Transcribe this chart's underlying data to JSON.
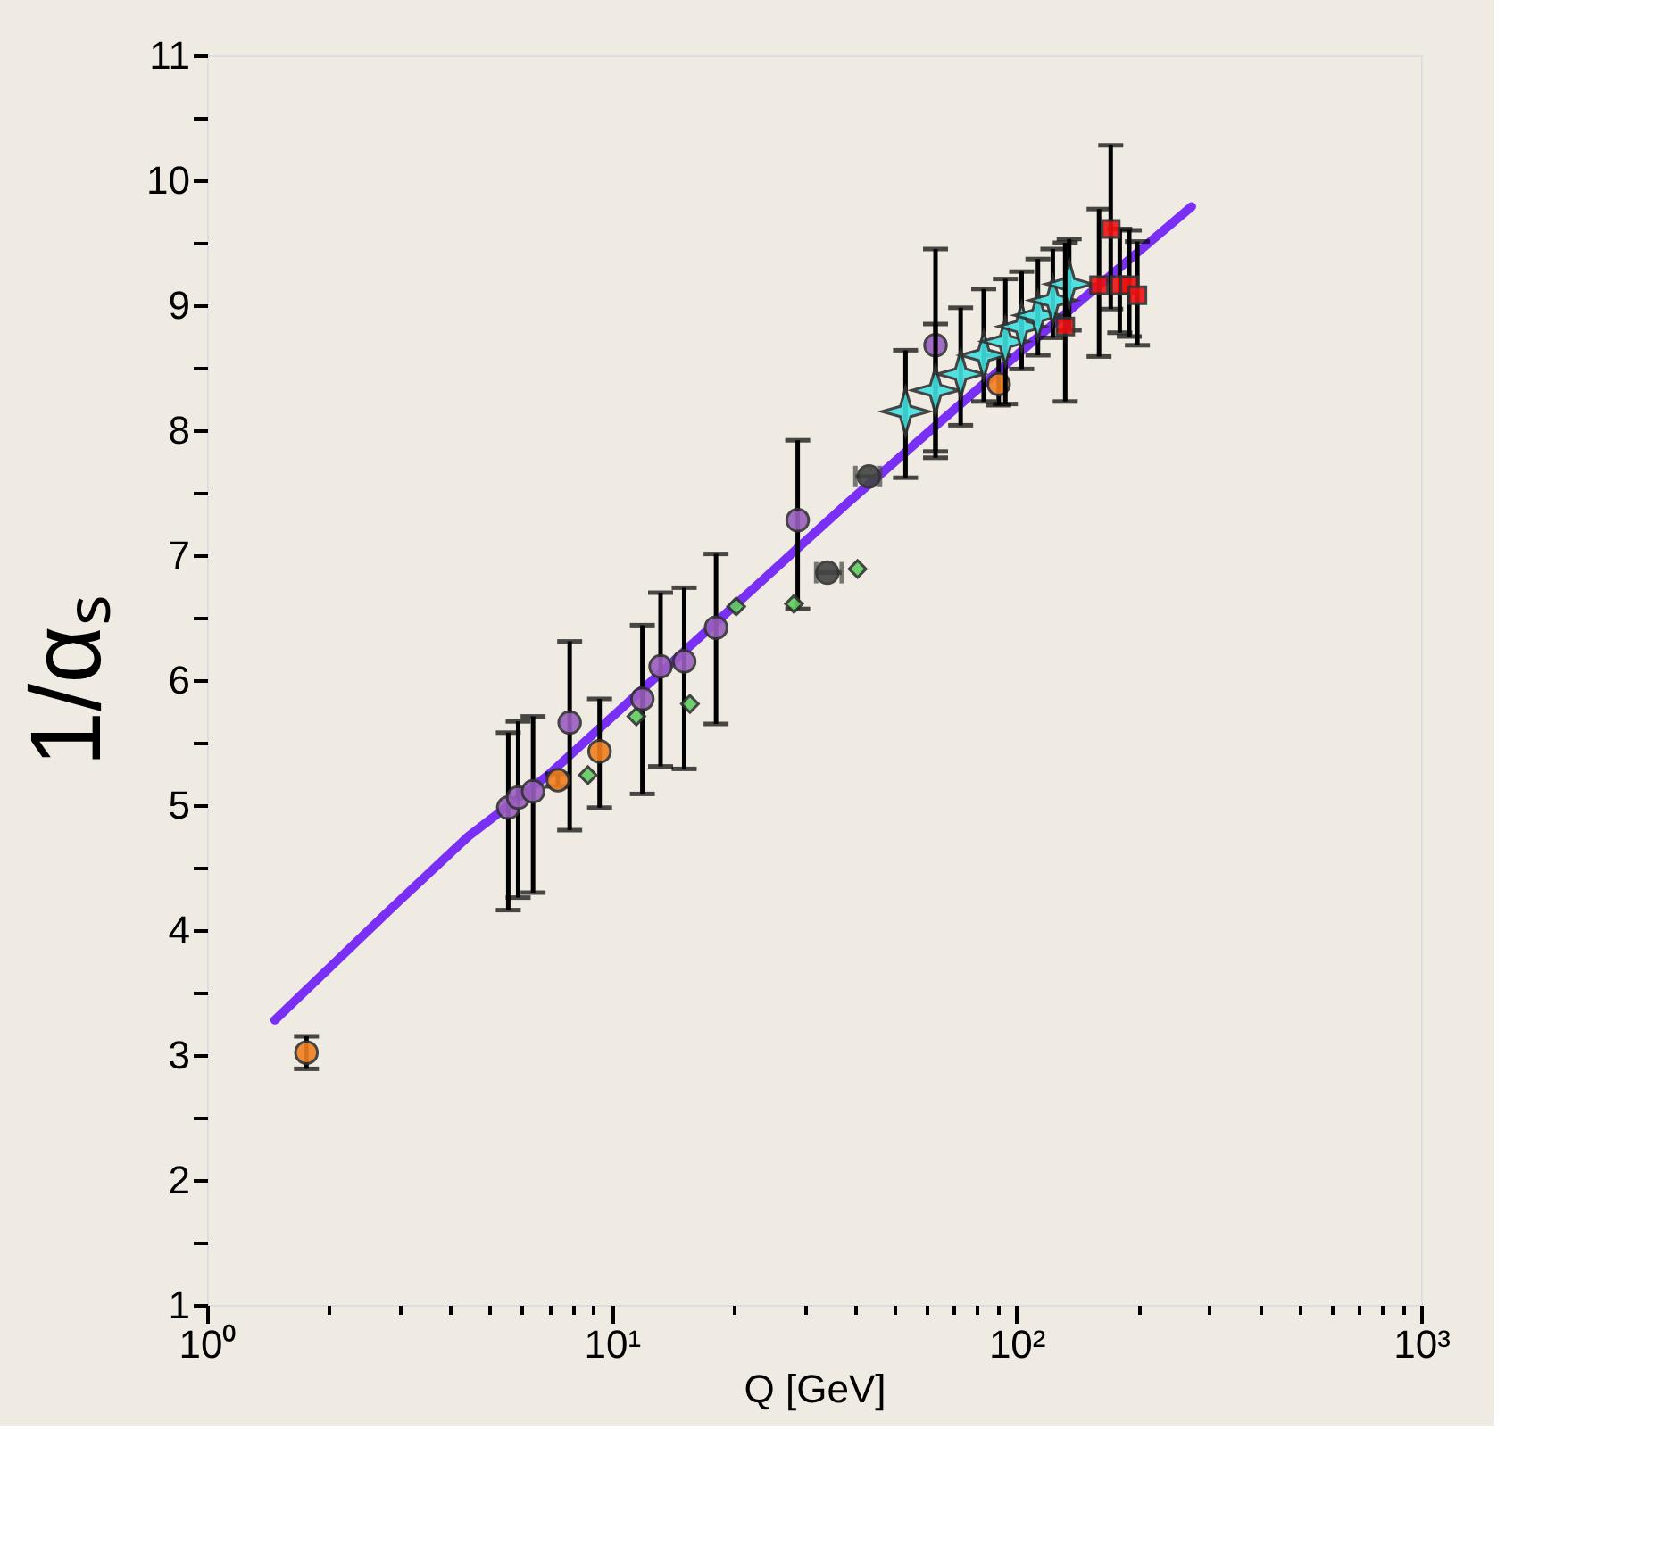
{
  "chart_data": {
    "type": "scatter",
    "xlabel": "Q [GeV]",
    "ylabel": "1/αₛ",
    "log": "x",
    "grid": false,
    "xlim": [
      1,
      1000
    ],
    "ylim": [
      1,
      11
    ],
    "xticks": [
      {
        "value": 1,
        "label": "10⁰"
      },
      {
        "value": 2,
        "label": null
      },
      {
        "value": 3,
        "label": null
      },
      {
        "value": 4,
        "label": null
      },
      {
        "value": 5,
        "label": null
      },
      {
        "value": 6,
        "label": null
      },
      {
        "value": 7,
        "label": null
      },
      {
        "value": 8,
        "label": null
      },
      {
        "value": 9,
        "label": null
      },
      {
        "value": 10,
        "label": "10¹"
      },
      {
        "value": 20,
        "label": null
      },
      {
        "value": 30,
        "label": null
      },
      {
        "value": 40,
        "label": null
      },
      {
        "value": 50,
        "label": null
      },
      {
        "value": 60,
        "label": null
      },
      {
        "value": 70,
        "label": null
      },
      {
        "value": 80,
        "label": null
      },
      {
        "value": 90,
        "label": null
      },
      {
        "value": 100,
        "label": "10²"
      },
      {
        "value": 200,
        "label": null
      },
      {
        "value": 300,
        "label": null
      },
      {
        "value": 400,
        "label": null
      },
      {
        "value": 500,
        "label": null
      },
      {
        "value": 600,
        "label": null
      },
      {
        "value": 700,
        "label": null
      },
      {
        "value": 800,
        "label": null
      },
      {
        "value": 900,
        "label": null
      },
      {
        "value": 1000,
        "label": "10³"
      }
    ],
    "yticks": [
      1,
      {
        "value": 1.5,
        "label": null
      },
      2,
      {
        "value": 2.5,
        "label": null
      },
      3,
      {
        "value": 3.5,
        "label": null
      },
      4,
      {
        "value": 4.5,
        "label": null
      },
      5,
      {
        "value": 5.5,
        "label": null
      },
      6,
      {
        "value": 6.5,
        "label": null
      },
      7,
      {
        "value": 7.5,
        "label": null
      },
      8,
      {
        "value": 8.5,
        "label": null
      },
      9,
      {
        "value": 9.5,
        "label": null
      },
      10,
      {
        "value": 10.5,
        "label": null
      },
      11
    ],
    "series": [
      {
        "type": "line",
        "color": "#7a2ff5",
        "marker": "none",
        "line_style": "solid",
        "x": [
          1.47,
          2.91,
          4.42,
          6.96,
          38.3,
          100,
          271
        ],
        "values": [
          3.28,
          4.2,
          4.75,
          5.24,
          7.42,
          8.6,
          9.79
        ]
      },
      {
        "color": "#9b5fc0",
        "marker": "circle",
        "x": [
          5.55,
          5.87,
          6.39,
          7.87,
          11.9,
          13.2,
          15.1,
          18.1,
          28.8,
          63.1
        ],
        "values": [
          4.98,
          5.06,
          5.11,
          5.66,
          5.85,
          6.11,
          6.15,
          6.42,
          7.28,
          8.68
        ],
        "errors": [
          [
            4.16,
            5.58
          ],
          [
            4.26,
            5.67
          ],
          [
            4.3,
            5.71
          ],
          [
            4.8,
            6.31
          ],
          [
            5.09,
            6.44
          ],
          [
            5.31,
            6.7
          ],
          [
            5.29,
            6.74
          ],
          [
            5.65,
            7.01
          ],
          [
            6.57,
            7.92
          ],
          [
            7.78,
            9.45
          ]
        ]
      },
      {
        "color": "#f07f20",
        "marker": "circle",
        "x": [
          1.76,
          7.36,
          9.33,
          90.4
        ],
        "values": [
          3.02,
          5.2,
          5.43,
          8.37
        ],
        "errors": [
          [
            2.89,
            3.15
          ],
          [
            5.15,
            5.25
          ],
          [
            4.98,
            5.85
          ],
          [
            8.2,
            8.6
          ]
        ]
      },
      {
        "color": "#5fcf5f",
        "marker": "diamond",
        "x": [
          8.73,
          11.5,
          15.6,
          20.3,
          28.2,
          40.5
        ],
        "values": [
          5.24,
          5.71,
          5.81,
          6.59,
          6.61,
          6.89
        ]
      },
      {
        "color": "#444444",
        "marker": "circle",
        "x": [
          34.1,
          43.2
        ],
        "values": [
          6.86,
          7.63
        ],
        "xerrors": [
          [
            32,
            37
          ],
          [
            40,
            46
          ]
        ]
      },
      {
        "color": "#40e0e0",
        "marker": "star",
        "x": [
          53.2,
          63.1,
          72.8,
          83.0,
          93.9,
          103,
          113,
          123,
          135
        ],
        "values": [
          8.15,
          8.32,
          8.45,
          8.6,
          8.71,
          8.83,
          8.92,
          9.04,
          9.17
        ],
        "errors": [
          [
            7.62,
            8.64
          ],
          [
            7.83,
            8.85
          ],
          [
            8.04,
            8.98
          ],
          [
            8.23,
            9.13
          ],
          [
            8.21,
            9.21
          ],
          [
            8.49,
            9.27
          ],
          [
            8.6,
            9.37
          ],
          [
            8.74,
            9.45
          ],
          [
            8.8,
            9.53
          ]
        ]
      },
      {
        "color": "#ee1111",
        "marker": "square",
        "x": [
          132,
          160,
          171,
          180,
          190,
          199
        ],
        "values": [
          8.83,
          9.16,
          9.61,
          9.16,
          9.16,
          9.08
        ],
        "errors": [
          [
            8.23,
            9.5
          ],
          [
            8.59,
            9.77
          ],
          [
            8.97,
            10.28
          ],
          [
            8.78,
            9.61
          ],
          [
            8.75,
            9.6
          ],
          [
            8.68,
            9.51
          ]
        ]
      }
    ]
  }
}
